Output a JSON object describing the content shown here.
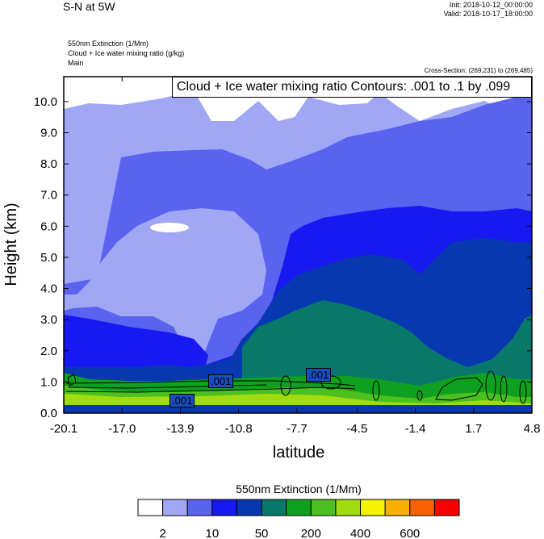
{
  "header": {
    "title": "S-N at 5W",
    "init": "Init: 2018-10-12_00:00:00",
    "valid": "Valid: 2018-10-17_18:00:00",
    "field1": "550nm Extinction   (1/Mm)",
    "field2": "Cloud + Ice water mixing ratio   (g/kg)",
    "field3": "Main",
    "cross_section": "Cross-Section: (269,231) to (269,485)"
  },
  "contour_info": "Cloud + Ice water mixing ratio Contours: .001 to .1 by .099",
  "contour_labels": [
    ".001",
    ".001",
    ".001"
  ],
  "chart_data": {
    "type": "heatmap",
    "xlabel": "latitude",
    "ylabel": "Height (km)",
    "x_ticks": [
      "-20.1",
      "-17.0",
      "-13.9",
      "-10.8",
      "-7.7",
      "-4.5",
      "-1.4",
      "1.7",
      "4.8"
    ],
    "y_ticks": [
      "0.0",
      "1.0",
      "2.0",
      "3.0",
      "4.0",
      "5.0",
      "6.0",
      "7.0",
      "8.0",
      "9.0",
      "10.0"
    ],
    "xlim": [
      -20.1,
      4.8
    ],
    "ylim": [
      0.0,
      10.8
    ],
    "colorbar": {
      "title": "550nm Extinction  (1/Mm)",
      "colors": [
        "#ffffff",
        "#a0a8f6",
        "#5a62f0",
        "#1818f0",
        "#0838b0",
        "#08786a",
        "#10a020",
        "#4cc020",
        "#a0dc10",
        "#f4f400",
        "#f8b000",
        "#f86000",
        "#f80000"
      ],
      "tick_labels": [
        "2",
        "10",
        "50",
        "200",
        "400",
        "600"
      ]
    }
  }
}
